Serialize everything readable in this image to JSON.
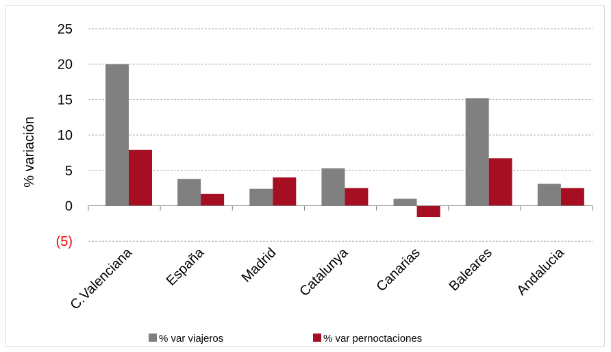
{
  "chart_data": {
    "type": "bar",
    "categories": [
      "C.Valenciana",
      "España",
      "Madrid",
      "Catalunya",
      "Canarias",
      "Baleares",
      "Andalucia"
    ],
    "series": [
      {
        "name": "% var viajeros",
        "color": "#808080",
        "values": [
          20.0,
          3.8,
          2.4,
          5.3,
          1.0,
          15.2,
          3.1
        ]
      },
      {
        "name": "% var pernoctaciones",
        "color": "#a50f21",
        "values": [
          7.9,
          1.7,
          4.0,
          2.5,
          -1.6,
          6.7,
          2.5
        ]
      }
    ],
    "yticks": [
      {
        "value": 25,
        "label": "25"
      },
      {
        "value": 20,
        "label": "20"
      },
      {
        "value": 15,
        "label": "15"
      },
      {
        "value": 10,
        "label": "10"
      },
      {
        "value": 5,
        "label": "5"
      },
      {
        "value": 0,
        "label": "0"
      },
      {
        "value": -5,
        "label": "(5)"
      }
    ],
    "ylim": [
      -5,
      25
    ],
    "xlabel": "",
    "ylabel": "% variación",
    "title": "",
    "grid": true,
    "legend": "bottom",
    "negative_label_color": "#ff0000"
  }
}
